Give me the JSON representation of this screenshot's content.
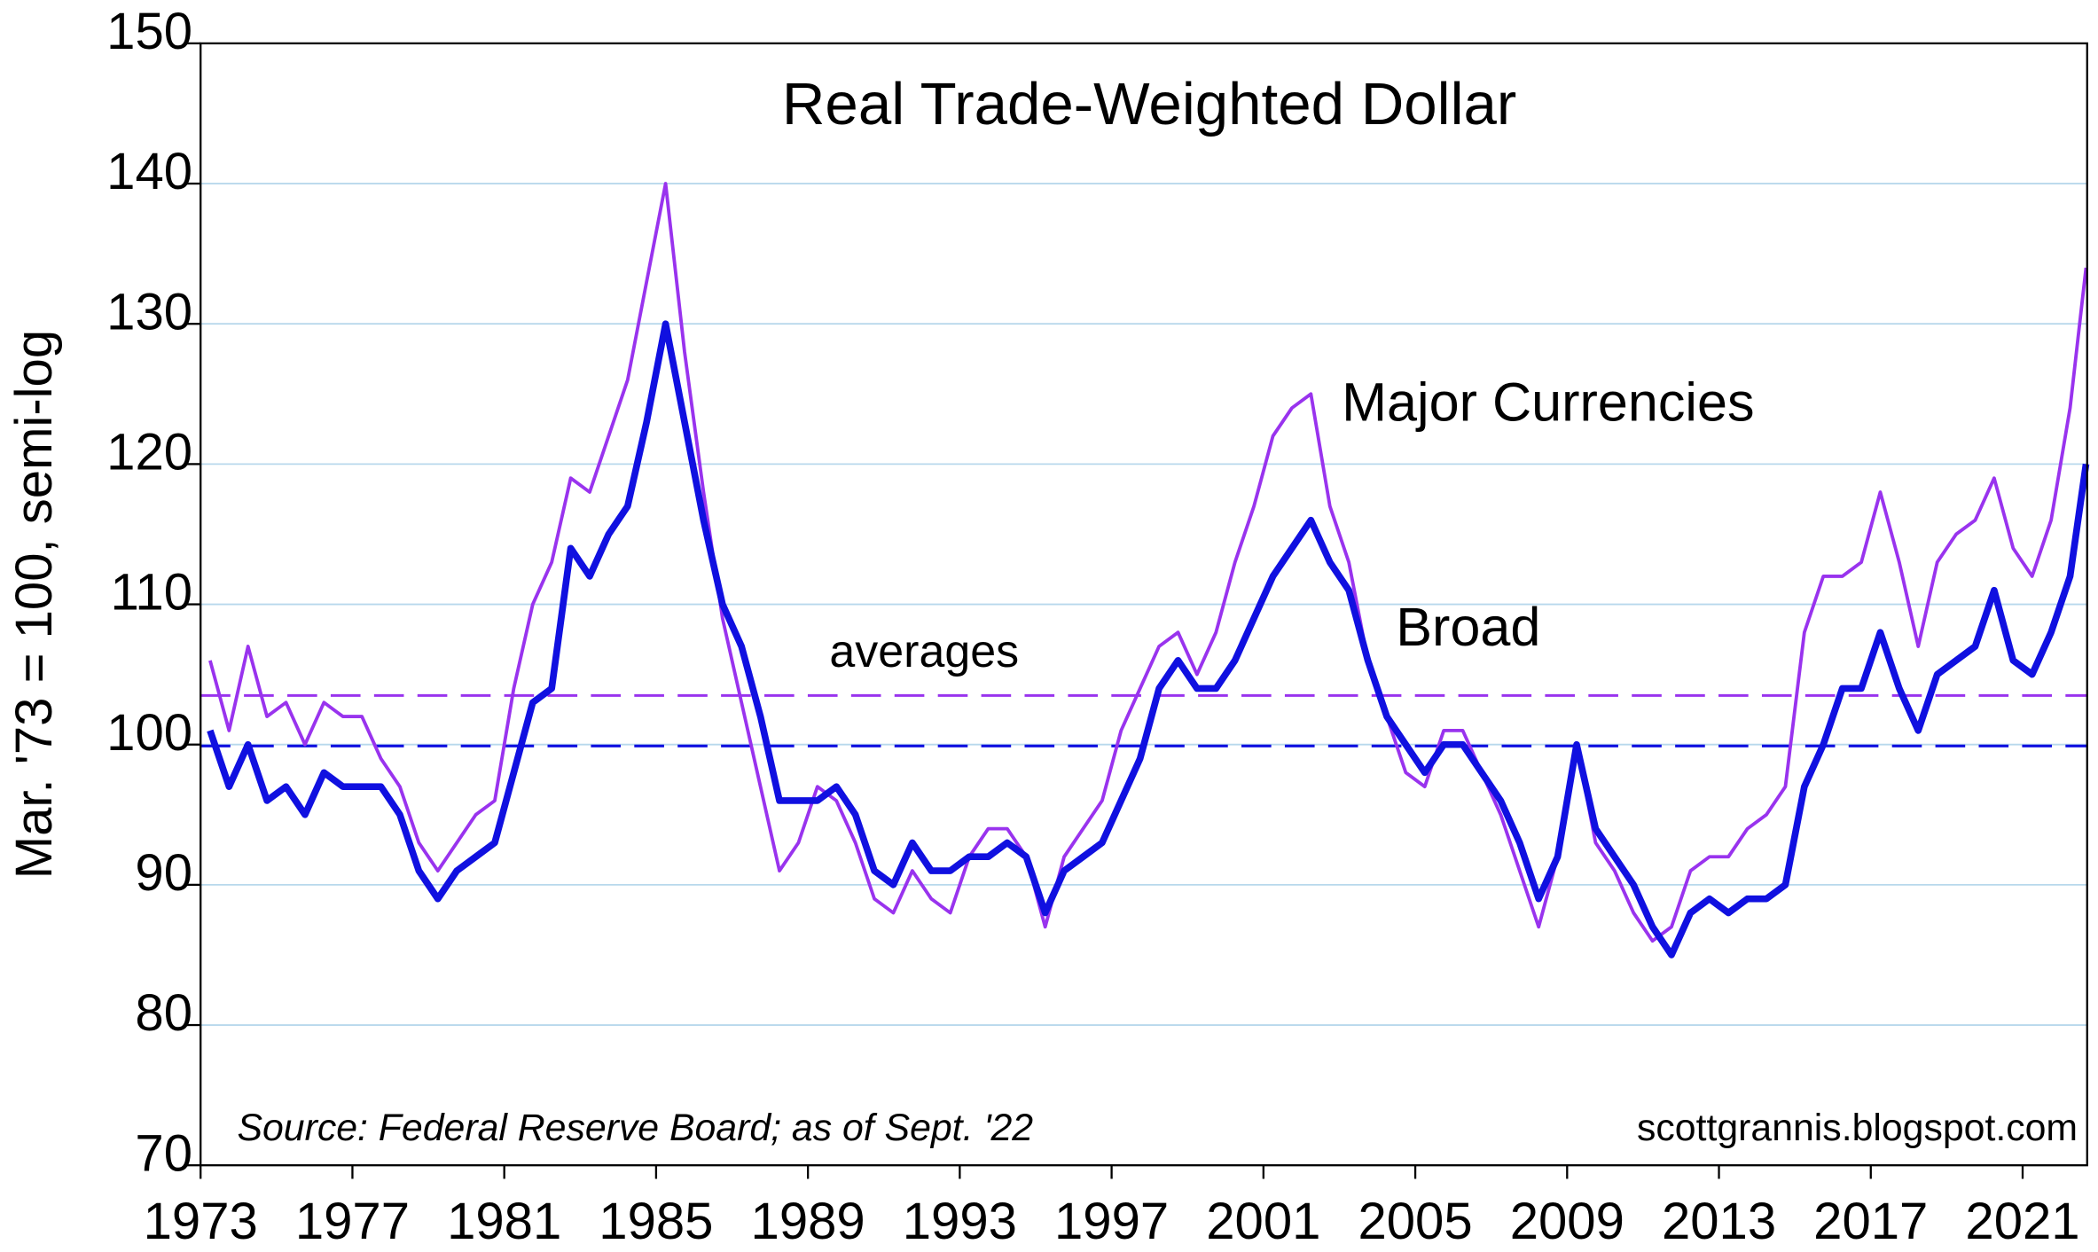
{
  "chart_data": {
    "type": "line",
    "title": "Real Trade-Weighted Dollar",
    "y_label": "Mar. '73 = 100, semi-log",
    "source": "Source: Federal Reserve Board; as of Sept. '22",
    "credit": "scottgrannis.blogspot.com",
    "annotation": "averages",
    "annotation_color": "#1a7f1a",
    "xlim": [
      1973,
      2022.7
    ],
    "xticks": [
      1973,
      1977,
      1981,
      1985,
      1989,
      1993,
      1997,
      2001,
      2005,
      2009,
      2013,
      2017,
      2021
    ],
    "ylim": [
      70,
      150
    ],
    "yticks": [
      70,
      80,
      90,
      100,
      110,
      120,
      130,
      140,
      150
    ],
    "log_scale": false,
    "grid": true,
    "grid_color": "#b8d8ec",
    "x": [
      1973.25,
      1973.75,
      1974.25,
      1974.75,
      1975.25,
      1975.75,
      1976.25,
      1976.75,
      1977.25,
      1977.75,
      1978.25,
      1978.75,
      1979.25,
      1979.75,
      1980.25,
      1980.75,
      1981.25,
      1981.75,
      1982.25,
      1982.75,
      1983.25,
      1983.75,
      1984.25,
      1984.75,
      1985.25,
      1985.75,
      1986.25,
      1986.75,
      1987.25,
      1987.75,
      1988.25,
      1988.75,
      1989.25,
      1989.75,
      1990.25,
      1990.75,
      1991.25,
      1991.75,
      1992.25,
      1992.75,
      1993.25,
      1993.75,
      1994.25,
      1994.75,
      1995.25,
      1995.75,
      1996.25,
      1996.75,
      1997.25,
      1997.75,
      1998.25,
      1998.75,
      1999.25,
      1999.75,
      2000.25,
      2000.75,
      2001.25,
      2001.75,
      2002.25,
      2002.75,
      2003.25,
      2003.75,
      2004.25,
      2004.75,
      2005.25,
      2005.75,
      2006.25,
      2006.75,
      2007.25,
      2007.75,
      2008.25,
      2008.75,
      2009.25,
      2009.75,
      2010.25,
      2010.75,
      2011.25,
      2011.75,
      2012.25,
      2012.75,
      2013.25,
      2013.75,
      2014.25,
      2014.75,
      2015.25,
      2015.75,
      2016.25,
      2016.75,
      2017.25,
      2017.75,
      2018.25,
      2018.75,
      2019.25,
      2019.75,
      2020.25,
      2020.75,
      2021.25,
      2021.75,
      2022.25,
      2022.67
    ],
    "series": [
      {
        "name": "Major Currencies",
        "color": "#9933ee",
        "width": 2.5,
        "average": 103.5,
        "values": [
          106,
          101,
          107,
          102,
          103,
          100,
          103,
          102,
          102,
          99,
          97,
          93,
          91,
          93,
          95,
          96,
          104,
          110,
          113,
          119,
          118,
          122,
          126,
          133,
          140,
          128,
          118,
          109,
          103,
          97,
          91,
          93,
          97,
          96,
          93,
          89,
          88,
          91,
          89,
          88,
          92,
          94,
          94,
          92,
          87,
          92,
          94,
          96,
          101,
          104,
          107,
          108,
          105,
          108,
          113,
          117,
          122,
          124,
          125,
          117,
          113,
          106,
          102,
          98,
          97,
          101,
          101,
          98,
          95,
          91,
          87,
          92,
          100,
          93,
          91,
          88,
          86,
          87,
          91,
          92,
          92,
          94,
          95,
          97,
          108,
          112,
          112,
          113,
          118,
          113,
          107,
          113,
          115,
          116,
          119,
          114,
          112,
          116,
          124,
          134
        ]
      },
      {
        "name": "Broad",
        "color": "#1010e0",
        "width": 5,
        "average": 99.9,
        "values": [
          101,
          97,
          100,
          96,
          97,
          95,
          98,
          97,
          97,
          97,
          95,
          91,
          89,
          91,
          92,
          93,
          98,
          103,
          104,
          114,
          112,
          115,
          117,
          123,
          130,
          123,
          116,
          110,
          107,
          102,
          96,
          96,
          96,
          97,
          95,
          91,
          90,
          93,
          91,
          91,
          92,
          92,
          93,
          92,
          88,
          91,
          92,
          93,
          96,
          99,
          104,
          106,
          104,
          104,
          106,
          109,
          112,
          114,
          116,
          113,
          111,
          106,
          102,
          100,
          98,
          100,
          100,
          98,
          96,
          93,
          89,
          92,
          100,
          94,
          92,
          90,
          87,
          85,
          88,
          89,
          88,
          89,
          89,
          90,
          97,
          100,
          104,
          104,
          108,
          104,
          101,
          105,
          106,
          107,
          111,
          106,
          105,
          108,
          112,
          120
        ]
      }
    ]
  }
}
